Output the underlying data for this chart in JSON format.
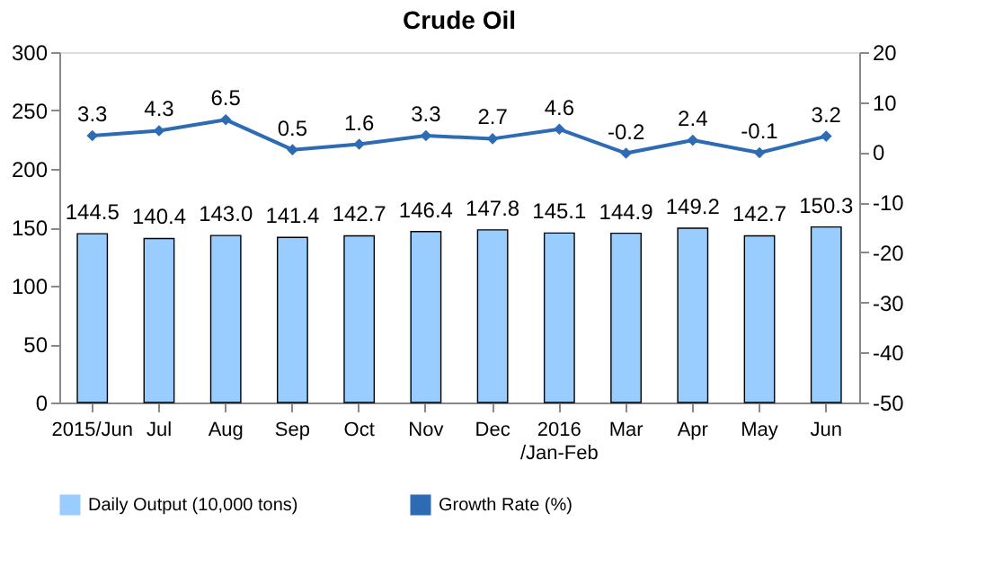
{
  "chart_data": {
    "type": "bar",
    "title": "Crude Oil",
    "categories": [
      "2015/Jun",
      "Jul",
      "Aug",
      "Sep",
      "Oct",
      "Nov",
      "Dec",
      "2016\n/Jan-Feb",
      "Mar",
      "Apr",
      "May",
      "Jun"
    ],
    "series": [
      {
        "name": "Daily Output (10,000 tons)",
        "color": "#99ccff",
        "values": [
          144.5,
          140.4,
          143.0,
          141.4,
          142.7,
          146.4,
          147.8,
          145.1,
          144.9,
          149.2,
          142.7,
          150.3
        ],
        "value_labels": [
          "144.5",
          "140.4",
          "143.0",
          "141.4",
          "142.7",
          "146.4",
          "147.8",
          "145.1",
          "144.9",
          "149.2",
          "142.7",
          "150.3"
        ]
      },
      {
        "name": "Growth Rate (%)",
        "type": "line",
        "axis": "y2",
        "color": "#2e6bb5",
        "marker": "diamond",
        "values": [
          3.3,
          4.3,
          6.5,
          0.5,
          1.6,
          3.3,
          2.7,
          4.6,
          -0.2,
          2.4,
          -0.1,
          3.2
        ],
        "value_labels": [
          "3.3",
          "4.3",
          "6.5",
          "0.5",
          "1.6",
          "3.3",
          "2.7",
          "4.6",
          "-0.2",
          "2.4",
          "-0.1",
          "3.2"
        ]
      }
    ],
    "ylim": [
      0,
      300
    ],
    "yticks": [
      0,
      50,
      100,
      150,
      200,
      250,
      300
    ],
    "y2lim": [
      -50,
      20
    ],
    "y2ticks": [
      -50,
      -40,
      -30,
      -20,
      -10,
      0,
      10,
      20
    ],
    "legend": "bottom"
  }
}
